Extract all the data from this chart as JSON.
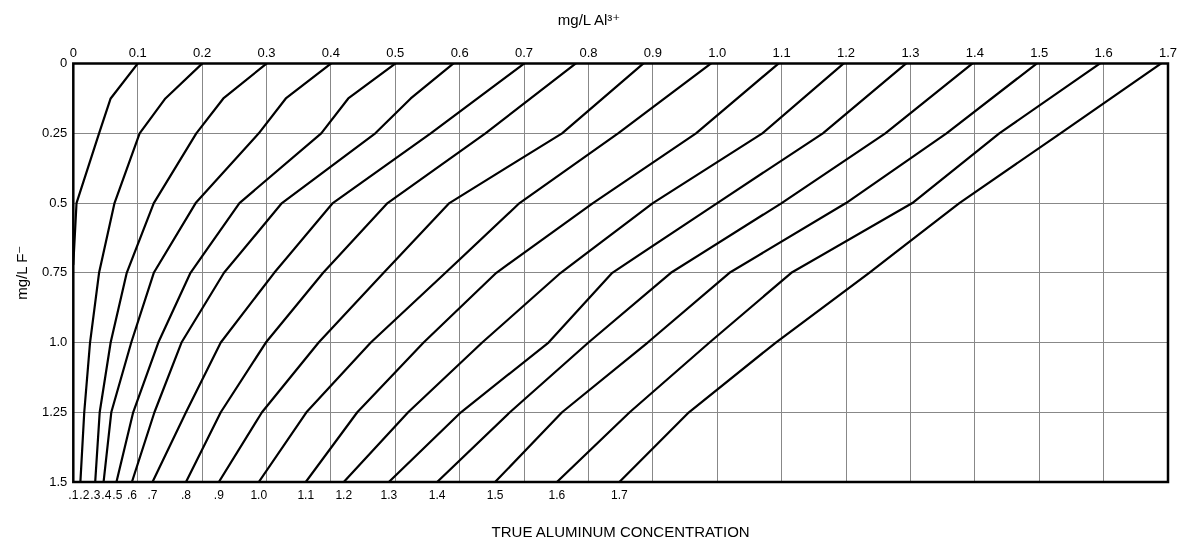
{
  "chart_data": {
    "type": "line",
    "title": "mg/L Al³⁺",
    "xlabel": "TRUE ALUMINUM CONCENTRATION",
    "ylabel": "mg/L F⁻",
    "xlim": [
      0,
      1.7
    ],
    "xticks": [
      0,
      0.1,
      0.2,
      0.3,
      0.4,
      0.5,
      0.6,
      0.7,
      0.8,
      0.9,
      {
        "value": 1,
        "label": "1.0"
      },
      1.1,
      1.2,
      1.3,
      1.4,
      1.5,
      1.6,
      1.7
    ],
    "ylim": [
      1.5,
      0
    ],
    "yticks": [
      0,
      0.25,
      0.5,
      0.75,
      {
        "value": 1,
        "label": "1.0"
      },
      1.25,
      1.5
    ],
    "grid": true,
    "legend": false,
    "marker": "none",
    "line_style": "solid",
    "series": [
      {
        "name": ".1",
        "color": "#000000",
        "x": [
          0.1,
          0.058,
          0.04,
          0.005,
          0
        ],
        "values": [
          0,
          0.125,
          0.25,
          0.5,
          0.72
        ]
      },
      {
        "name": ".2",
        "color": "#000000",
        "x": [
          0.2,
          0.143,
          0.103,
          0.064,
          0.04,
          0.026,
          0.017,
          0.011
        ],
        "values": [
          0,
          0.125,
          0.25,
          0.5,
          0.75,
          1,
          1.25,
          1.5
        ]
      },
      {
        "name": ".3",
        "color": "#000000",
        "x": [
          0.3,
          0.233,
          0.191,
          0.125,
          0.083,
          0.058,
          0.041,
          0.034
        ],
        "values": [
          0,
          0.125,
          0.25,
          0.5,
          0.75,
          1,
          1.25,
          1.5
        ]
      },
      {
        "name": ".4",
        "color": "#000000",
        "x": [
          0.4,
          0.33,
          0.288,
          0.19,
          0.125,
          0.09,
          0.059,
          0.047
        ],
        "values": [
          0,
          0.125,
          0.25,
          0.5,
          0.75,
          1,
          1.25,
          1.5
        ]
      },
      {
        "name": ".5",
        "color": "#000000",
        "x": [
          0.5,
          0.427,
          0.385,
          0.258,
          0.182,
          0.132,
          0.093,
          0.067
        ],
        "values": [
          0,
          0.125,
          0.25,
          0.5,
          0.75,
          1,
          1.25,
          1.5
        ]
      },
      {
        "name": ".6",
        "color": "#000000",
        "x": [
          0.59,
          0.524,
          0.469,
          0.324,
          0.234,
          0.168,
          0.126,
          0.091
        ],
        "values": [
          0,
          0.125,
          0.25,
          0.5,
          0.75,
          1,
          1.25,
          1.5
        ]
      },
      {
        "name": ".7",
        "color": "#000000",
        "x": [
          0.7,
          0.555,
          0.403,
          0.312,
          0.229,
          0.175,
          0.123
        ],
        "values": [
          0,
          0.25,
          0.5,
          0.75,
          1,
          1.25,
          1.5
        ]
      },
      {
        "name": ".8",
        "color": "#000000",
        "x": [
          0.78,
          0.64,
          0.488,
          0.388,
          0.299,
          0.229,
          0.175
        ],
        "values": [
          0,
          0.25,
          0.5,
          0.75,
          1,
          1.25,
          1.5
        ]
      },
      {
        "name": ".9",
        "color": "#000000",
        "x": [
          0.885,
          0.759,
          0.584,
          0.482,
          0.381,
          0.293,
          0.226
        ],
        "values": [
          0,
          0.25,
          0.5,
          0.75,
          1,
          1.25,
          1.5
        ]
      },
      {
        "name": "1.0",
        "color": "#000000",
        "x": [
          0.99,
          0.846,
          0.693,
          0.578,
          0.462,
          0.362,
          0.288
        ],
        "values": [
          0,
          0.25,
          0.5,
          0.75,
          1,
          1.25,
          1.5
        ]
      },
      {
        "name": "1.1",
        "color": "#000000",
        "x": [
          1.095,
          0.967,
          0.807,
          0.657,
          0.544,
          0.441,
          0.361
        ],
        "values": [
          0,
          0.25,
          0.5,
          0.75,
          1,
          1.25,
          1.5
        ]
      },
      {
        "name": "1.2",
        "color": "#000000",
        "x": [
          1.196,
          1.07,
          0.9,
          0.757,
          0.635,
          0.52,
          0.42
        ],
        "values": [
          0,
          0.25,
          0.5,
          0.75,
          1,
          1.25,
          1.5
        ]
      },
      {
        "name": "1.3",
        "color": "#000000",
        "x": [
          1.293,
          1.164,
          1.0,
          0.837,
          0.738,
          0.602,
          0.49
        ],
        "values": [
          0,
          0.25,
          0.5,
          0.75,
          1,
          1.25,
          1.5
        ]
      },
      {
        "name": "1.4",
        "color": "#000000",
        "x": [
          1.396,
          1.261,
          1.1,
          0.928,
          0.8,
          0.678,
          0.565
        ],
        "values": [
          0,
          0.25,
          0.5,
          0.75,
          1,
          1.25,
          1.5
        ]
      },
      {
        "name": "1.5",
        "color": "#000000",
        "x": [
          1.496,
          1.356,
          1.2,
          1.019,
          0.892,
          0.759,
          0.655
        ],
        "values": [
          0,
          0.25,
          0.5,
          0.75,
          1,
          1.25,
          1.5
        ]
      },
      {
        "name": "1.6",
        "color": "#000000",
        "x": [
          1.594,
          1.438,
          1.303,
          1.115,
          0.988,
          0.864,
          0.751
        ],
        "values": [
          0,
          0.25,
          0.5,
          0.75,
          1,
          1.25,
          1.5
        ]
      },
      {
        "name": "1.7",
        "color": "#000000",
        "x": [
          1.689,
          1.533,
          1.376,
          1.236,
          1.091,
          0.956,
          0.848
        ],
        "values": [
          0,
          0.25,
          0.5,
          0.75,
          1,
          1.25,
          1.5
        ]
      }
    ]
  }
}
